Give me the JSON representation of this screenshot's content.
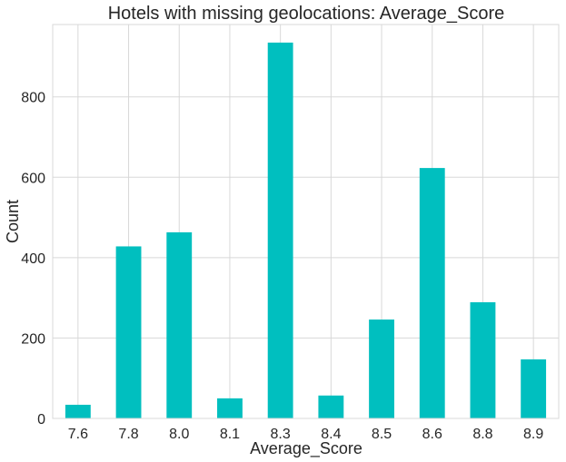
{
  "chart_data": {
    "type": "bar",
    "title": "Hotels with missing geolocations: Average_Score",
    "xlabel": "Average_Score",
    "ylabel": "Count",
    "categories": [
      "7.6",
      "7.8",
      "8.0",
      "8.1",
      "8.3",
      "8.4",
      "8.5",
      "8.6",
      "8.8",
      "8.9"
    ],
    "values": [
      34,
      428,
      463,
      50,
      935,
      57,
      246,
      623,
      289,
      147
    ],
    "ylim": [
      0,
      980
    ],
    "yticks": [
      0,
      200,
      400,
      600,
      800
    ],
    "grid": true,
    "bar_color": "#00bfbf"
  }
}
